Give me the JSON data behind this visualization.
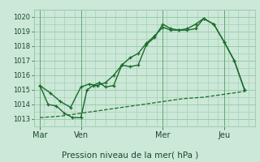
{
  "title": "Pression niveau de la mer( hPa )",
  "bg_color": "#cce8d8",
  "grid_color": "#99ccaa",
  "line_color": "#1a6b2a",
  "ylim": [
    1012.5,
    1020.5
  ],
  "yticks": [
    1013,
    1014,
    1015,
    1016,
    1017,
    1018,
    1019,
    1020
  ],
  "xlabel_color": "#1a4a2a",
  "xtick_labels": [
    "Mar",
    "Ven",
    "Mer",
    "Jeu"
  ],
  "xtick_positions": [
    0.0,
    2.0,
    6.0,
    9.0
  ],
  "xlim": [
    -0.3,
    10.5
  ],
  "vline_positions": [
    0.0,
    2.0,
    6.0,
    9.0
  ],
  "line1_x": [
    0.0,
    0.4,
    0.8,
    1.2,
    1.6,
    2.0,
    2.3,
    2.6,
    2.9,
    3.2,
    3.6,
    4.0,
    4.4,
    4.8,
    5.2,
    5.6,
    6.0,
    6.4,
    6.8,
    7.2,
    7.6,
    8.0,
    8.5,
    9.0,
    9.5,
    10.0
  ],
  "line1_y": [
    1015.3,
    1014.0,
    1013.9,
    1013.4,
    1013.1,
    1013.1,
    1015.0,
    1015.3,
    1015.5,
    1015.2,
    1015.3,
    1016.7,
    1016.6,
    1016.7,
    1018.1,
    1018.6,
    1019.5,
    1019.2,
    1019.1,
    1019.1,
    1019.2,
    1019.9,
    1019.5,
    1018.3,
    1017.0,
    1015.0
  ],
  "line2_x": [
    0.0,
    0.5,
    1.0,
    1.5,
    2.0,
    2.4,
    2.8,
    3.2,
    3.6,
    4.0,
    4.4,
    4.8,
    5.2,
    5.6,
    6.0,
    6.4,
    6.8,
    7.2,
    7.6,
    8.0,
    8.5,
    9.0,
    9.5,
    10.0
  ],
  "line2_y": [
    1015.3,
    1014.8,
    1014.2,
    1013.8,
    1015.2,
    1015.4,
    1015.3,
    1015.5,
    1016.0,
    1016.7,
    1017.2,
    1017.5,
    1018.2,
    1018.7,
    1019.3,
    1019.1,
    1019.1,
    1019.2,
    1019.5,
    1019.9,
    1019.5,
    1018.3,
    1017.0,
    1015.0
  ],
  "line3_x": [
    0.0,
    1.0,
    2.0,
    3.0,
    4.0,
    5.0,
    6.0,
    7.0,
    8.0,
    9.0,
    10.0
  ],
  "line3_y": [
    1013.1,
    1013.2,
    1013.4,
    1013.6,
    1013.8,
    1014.0,
    1014.2,
    1014.4,
    1014.5,
    1014.7,
    1014.9
  ]
}
